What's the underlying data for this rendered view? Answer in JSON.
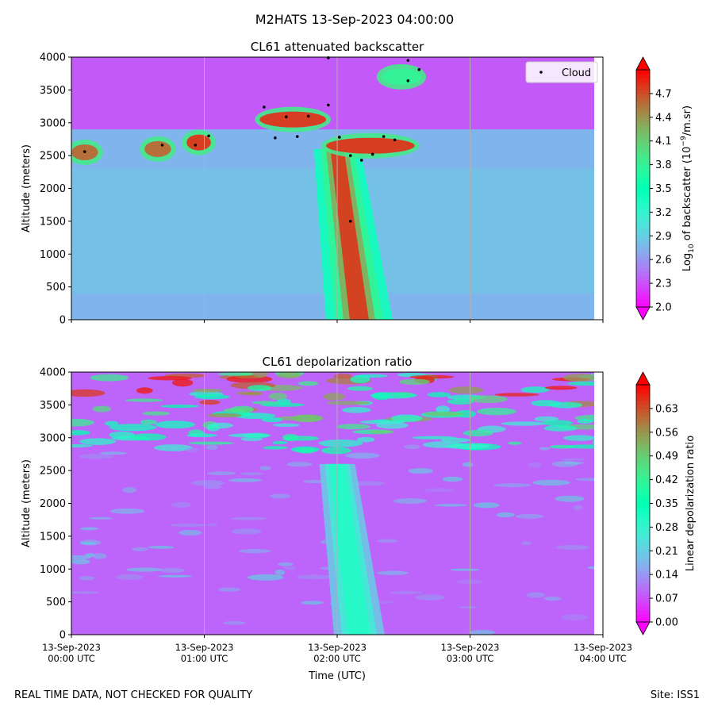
{
  "suptitle": "M2HATS 13-Sep-2023 04:00:00",
  "footer": {
    "left": "REAL TIME DATA, NOT CHECKED FOR QUALITY",
    "right": "Site: ISS1"
  },
  "chart_data": [
    {
      "type": "heatmap",
      "title": "CL61 attenuated backscatter",
      "ylabel": "Altitude (meters)",
      "xlabel": "",
      "xlim": [
        "00:00",
        "04:00"
      ],
      "ylim": [
        0,
        4000
      ],
      "yticks": [
        0,
        500,
        1000,
        1500,
        2000,
        2500,
        3000,
        3500,
        4000
      ],
      "xticks": [
        "00:00",
        "01:00",
        "02:00",
        "03:00",
        "04:00"
      ],
      "show_xticklabels": false,
      "grid": "vertical lines at hourly ticks",
      "colormap": "rainbow",
      "colorbar": {
        "label_pre": "Log",
        "label_sub": "10",
        "label_mid": " of backscatter (10",
        "label_sup": "−9",
        "label_post": "/m.sr)",
        "min": 2.0,
        "max": 5.0,
        "ticks": [
          "2.0",
          "2.3",
          "2.6",
          "2.9",
          "3.2",
          "3.5",
          "3.8",
          "4.1",
          "4.4",
          "4.7"
        ],
        "extend": "both"
      },
      "legend": {
        "position": "top-right",
        "entries": [
          "Cloud"
        ]
      },
      "background_level": 2.75,
      "features": [
        {
          "kind": "plume",
          "description": "strong plume rising from ground",
          "t_bottom": "02:10",
          "t_top": "02:00",
          "alt_top": 2600,
          "peak": 4.8
        },
        {
          "kind": "layer",
          "t_start": "00:00",
          "t_end": "00:12",
          "alt": 2550,
          "value": 4.6
        },
        {
          "kind": "layer",
          "t_start": "00:33",
          "t_end": "00:45",
          "alt": 2600,
          "value": 4.6
        },
        {
          "kind": "layer",
          "t_start": "00:52",
          "t_end": "01:03",
          "alt": 2700,
          "value": 4.8
        },
        {
          "kind": "layer",
          "t_start": "01:25",
          "t_end": "01:55",
          "alt": 3050,
          "value": 4.8
        },
        {
          "kind": "layer",
          "t_start": "01:55",
          "t_end": "02:35",
          "alt": 2650,
          "value": 4.8
        },
        {
          "kind": "layer",
          "t_start": "02:20",
          "t_end": "02:38",
          "alt": 3700,
          "value": 3.8
        }
      ],
      "cloud_points": [
        {
          "t": "00:06",
          "alt": 2560
        },
        {
          "t": "00:41",
          "alt": 2660
        },
        {
          "t": "00:56",
          "alt": 2660
        },
        {
          "t": "01:02",
          "alt": 2800
        },
        {
          "t": "01:27",
          "alt": 3240
        },
        {
          "t": "01:32",
          "alt": 2770
        },
        {
          "t": "01:37",
          "alt": 3090
        },
        {
          "t": "01:42",
          "alt": 2790
        },
        {
          "t": "01:47",
          "alt": 3100
        },
        {
          "t": "01:56",
          "alt": 3990
        },
        {
          "t": "01:56",
          "alt": 3270
        },
        {
          "t": "02:01",
          "alt": 2780
        },
        {
          "t": "02:06",
          "alt": 2500
        },
        {
          "t": "02:06",
          "alt": 1500
        },
        {
          "t": "02:11",
          "alt": 2430
        },
        {
          "t": "02:16",
          "alt": 2520
        },
        {
          "t": "02:21",
          "alt": 2790
        },
        {
          "t": "02:26",
          "alt": 2740
        },
        {
          "t": "02:32",
          "alt": 3950
        },
        {
          "t": "02:32",
          "alt": 3640
        },
        {
          "t": "02:37",
          "alt": 3810
        }
      ]
    },
    {
      "type": "heatmap",
      "title": "CL61 depolarization ratio",
      "ylabel": "Altitude (meters)",
      "xlabel": "Time (UTC)",
      "xlim": [
        "00:00",
        "04:00"
      ],
      "ylim": [
        0,
        4000
      ],
      "yticks": [
        0,
        500,
        1000,
        1500,
        2000,
        2500,
        3000,
        3500,
        4000
      ],
      "xticks": [
        "00:00",
        "01:00",
        "02:00",
        "03:00",
        "04:00"
      ],
      "xticklabels": [
        [
          "13-Sep-2023",
          "00:00 UTC"
        ],
        [
          "13-Sep-2023",
          "01:00 UTC"
        ],
        [
          "13-Sep-2023",
          "02:00 UTC"
        ],
        [
          "13-Sep-2023",
          "03:00 UTC"
        ],
        [
          "13-Sep-2023",
          "04:00 UTC"
        ]
      ],
      "grid": "vertical lines at hourly ticks",
      "colormap": "rainbow",
      "colorbar": {
        "label": "Linear depolarization ratio",
        "min": 0.0,
        "max": 0.7,
        "ticks": [
          "0.00",
          "0.07",
          "0.14",
          "0.21",
          "0.28",
          "0.35",
          "0.42",
          "0.49",
          "0.56",
          "0.63"
        ],
        "extend": "both"
      },
      "background_level": 0.09,
      "features": [
        {
          "kind": "plume",
          "description": "moderate depolarization in plume",
          "t_bottom": "02:10",
          "t_top": "02:00",
          "alt_top": 2600,
          "peak": 0.3
        },
        {
          "kind": "upper_noise",
          "alt_from": 2800,
          "alt_to": 4000,
          "range": [
            0.3,
            0.63
          ]
        }
      ]
    }
  ]
}
